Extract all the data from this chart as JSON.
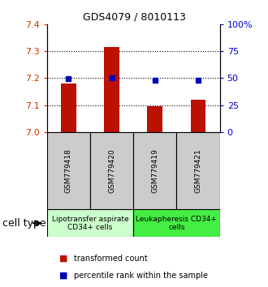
{
  "title": "GDS4079 / 8010113",
  "samples": [
    "GSM779418",
    "GSM779420",
    "GSM779419",
    "GSM779421"
  ],
  "red_values": [
    7.18,
    7.315,
    7.095,
    7.12
  ],
  "blue_values": [
    7.197,
    7.2,
    7.193,
    7.193
  ],
  "ylim_left": [
    7.0,
    7.4
  ],
  "ylim_right": [
    0,
    100
  ],
  "yticks_left": [
    7.0,
    7.1,
    7.2,
    7.3,
    7.4
  ],
  "yticks_right": [
    0,
    25,
    50,
    75,
    100
  ],
  "ytick_labels_right": [
    "0",
    "25",
    "50",
    "75",
    "100%"
  ],
  "grid_yticks": [
    7.1,
    7.2,
    7.3
  ],
  "cell_types": [
    {
      "label": "Lipotransfer aspirate\nCD34+ cells",
      "color": "#ccffcc",
      "span": [
        0,
        2
      ]
    },
    {
      "label": "Leukapheresis CD34+\ncells",
      "color": "#44ee44",
      "span": [
        2,
        4
      ]
    }
  ],
  "bar_color": "#bb1100",
  "dot_color": "#0000bb",
  "bar_width": 0.35,
  "sample_box_color": "#cccccc",
  "legend_red_label": "transformed count",
  "legend_blue_label": "percentile rank within the sample",
  "cell_type_label": "cell type",
  "left_tick_color": "#cc3300",
  "right_tick_color": "#0000cc",
  "title_fontsize": 9,
  "tick_fontsize": 8,
  "sample_fontsize": 6.5,
  "ct_fontsize": 6.5,
  "legend_fontsize": 7,
  "cell_type_fontsize": 9
}
